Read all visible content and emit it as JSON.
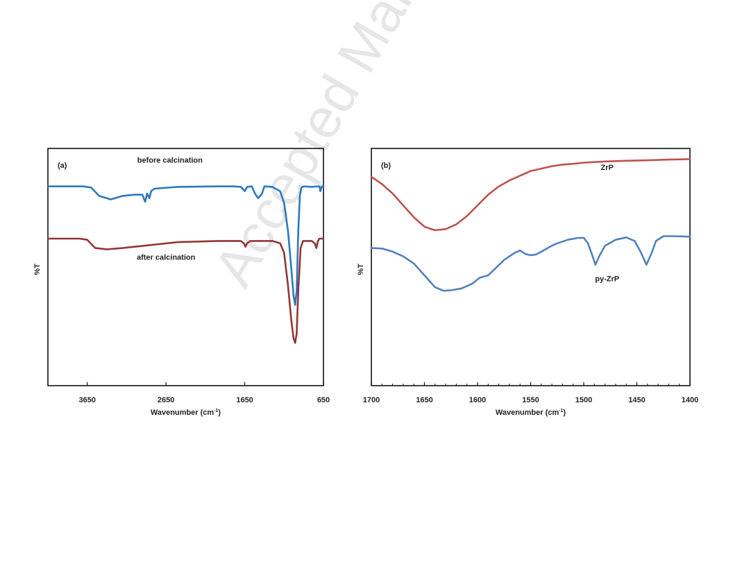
{
  "watermark": {
    "text": "Accepted Manuscript",
    "color": "#e6e6e6"
  },
  "chart_data": [
    {
      "type": "line",
      "panel_label": "(a)",
      "xlabel": "Wavenumber (cm-1)",
      "xlabel_main": "Wavenumber (cm",
      "xlabel_sup": "-1",
      "xlabel_close": ")",
      "ylabel": "%T",
      "x_reversed": true,
      "xlim": [
        4150,
        650
      ],
      "ylim": [
        0,
        100
      ],
      "ticks": [
        3650,
        2650,
        1650,
        650
      ],
      "tick_labels": [
        "3650",
        "2650",
        "1650",
        "650"
      ],
      "grid": false,
      "series": [
        {
          "name": "before calcination",
          "color": "#2a78be",
          "points": [
            [
              4150,
              84
            ],
            [
              3700,
              84
            ],
            [
              3600,
              83.5
            ],
            [
              3500,
              80
            ],
            [
              3350,
              78.5
            ],
            [
              3200,
              80
            ],
            [
              3050,
              80.5
            ],
            [
              2950,
              80.5
            ],
            [
              2915,
              77.5
            ],
            [
              2890,
              81
            ],
            [
              2860,
              79
            ],
            [
              2840,
              82
            ],
            [
              2800,
              83
            ],
            [
              2500,
              83.8
            ],
            [
              2000,
              84
            ],
            [
              1800,
              84
            ],
            [
              1700,
              83.8
            ],
            [
              1650,
              82
            ],
            [
              1620,
              83.8
            ],
            [
              1560,
              84
            ],
            [
              1520,
              81
            ],
            [
              1480,
              79
            ],
            [
              1430,
              81
            ],
            [
              1400,
              84
            ],
            [
              1300,
              83.8
            ],
            [
              1200,
              82
            ],
            [
              1150,
              77
            ],
            [
              1100,
              65
            ],
            [
              1060,
              50
            ],
            [
              1030,
              38
            ],
            [
              1010,
              34
            ],
            [
              990,
              40
            ],
            [
              970,
              65
            ],
            [
              950,
              80
            ],
            [
              930,
              83.5
            ],
            [
              900,
              84
            ],
            [
              800,
              83.8
            ],
            [
              720,
              84
            ],
            [
              700,
              84
            ],
            [
              690,
              82
            ],
            [
              670,
              84
            ],
            [
              650,
              84
            ]
          ]
        },
        {
          "name": "after calcination",
          "color": "#933535",
          "points": [
            [
              4150,
              62
            ],
            [
              3750,
              62
            ],
            [
              3650,
              61.5
            ],
            [
              3550,
              58
            ],
            [
              3400,
              57.5
            ],
            [
              3200,
              58
            ],
            [
              2500,
              60.5
            ],
            [
              2000,
              61
            ],
            [
              1700,
              61
            ],
            [
              1660,
              60
            ],
            [
              1640,
              58.5
            ],
            [
              1620,
              60
            ],
            [
              1580,
              61
            ],
            [
              1300,
              61
            ],
            [
              1200,
              60
            ],
            [
              1150,
              56
            ],
            [
              1100,
              42
            ],
            [
              1060,
              28
            ],
            [
              1030,
              20
            ],
            [
              1010,
              18
            ],
            [
              990,
              22
            ],
            [
              970,
              40
            ],
            [
              940,
              58
            ],
            [
              910,
              61
            ],
            [
              800,
              61
            ],
            [
              760,
              60
            ],
            [
              740,
              58
            ],
            [
              720,
              61
            ],
            [
              700,
              62
            ],
            [
              650,
              62
            ]
          ]
        }
      ],
      "annotations": [
        {
          "text": "before calcination",
          "x": 2600,
          "y": 94
        },
        {
          "text": "after calcination",
          "x": 2650,
          "y": 53
        }
      ]
    },
    {
      "type": "line",
      "panel_label": "(b)",
      "xlabel": "Wavenumber (cm-1)",
      "xlabel_main": "Wavenumber (cm",
      "xlabel_sup": "-1",
      "xlabel_close": ")",
      "ylabel": "%T",
      "x_reversed": true,
      "xlim": [
        1700,
        1400
      ],
      "ylim": [
        0,
        100
      ],
      "ticks": [
        1700,
        1650,
        1600,
        1550,
        1500,
        1450,
        1400
      ],
      "tick_labels": [
        "1700",
        "1650",
        "1600",
        "1550",
        "1500",
        "1450",
        "1400"
      ],
      "grid": false,
      "series": [
        {
          "name": "ZrP",
          "color": "#c0504d",
          "points": [
            [
              1700,
              88
            ],
            [
              1690,
              85
            ],
            [
              1680,
              81
            ],
            [
              1670,
              76
            ],
            [
              1660,
              71
            ],
            [
              1650,
              67
            ],
            [
              1640,
              65.5
            ],
            [
              1630,
              66
            ],
            [
              1620,
              68
            ],
            [
              1610,
              71.5
            ],
            [
              1600,
              76
            ],
            [
              1590,
              80.5
            ],
            [
              1580,
              84
            ],
            [
              1570,
              86.5
            ],
            [
              1560,
              88.5
            ],
            [
              1550,
              90.5
            ],
            [
              1540,
              91.5
            ],
            [
              1530,
              92.5
            ],
            [
              1520,
              93.2
            ],
            [
              1510,
              93.5
            ],
            [
              1500,
              94
            ],
            [
              1480,
              94.5
            ],
            [
              1460,
              94.8
            ],
            [
              1440,
              95
            ],
            [
              1420,
              95.3
            ],
            [
              1400,
              95.5
            ]
          ]
        },
        {
          "name": "py-ZrP",
          "color": "#4f81bd",
          "points": [
            [
              1700,
              58
            ],
            [
              1690,
              57.8
            ],
            [
              1680,
              56.5
            ],
            [
              1670,
              54.5
            ],
            [
              1660,
              51.5
            ],
            [
              1650,
              46.5
            ],
            [
              1640,
              41.5
            ],
            [
              1632,
              40
            ],
            [
              1625,
              40.2
            ],
            [
              1615,
              41
            ],
            [
              1605,
              43
            ],
            [
              1598,
              45.5
            ],
            [
              1590,
              46.5
            ],
            [
              1583,
              49.5
            ],
            [
              1575,
              53
            ],
            [
              1565,
              56
            ],
            [
              1560,
              57
            ],
            [
              1555,
              55.5
            ],
            [
              1550,
              55
            ],
            [
              1545,
              55.3
            ],
            [
              1540,
              56.5
            ],
            [
              1530,
              59
            ],
            [
              1525,
              60
            ],
            [
              1515,
              61.5
            ],
            [
              1505,
              62.3
            ],
            [
              1500,
              62.3
            ],
            [
              1496,
              60
            ],
            [
              1492,
              55
            ],
            [
              1489,
              51
            ],
            [
              1485,
              55
            ],
            [
              1480,
              59
            ],
            [
              1470,
              61.5
            ],
            [
              1460,
              62.5
            ],
            [
              1452,
              61
            ],
            [
              1446,
              56
            ],
            [
              1441,
              51
            ],
            [
              1436,
              56
            ],
            [
              1432,
              61
            ],
            [
              1425,
              63
            ],
            [
              1415,
              63
            ],
            [
              1400,
              62.8
            ]
          ]
        }
      ],
      "annotations": [
        {
          "text": "ZrP",
          "x": 1478,
          "y": 91
        },
        {
          "text": "py-ZrP",
          "x": 1478,
          "y": 44
        }
      ]
    }
  ]
}
